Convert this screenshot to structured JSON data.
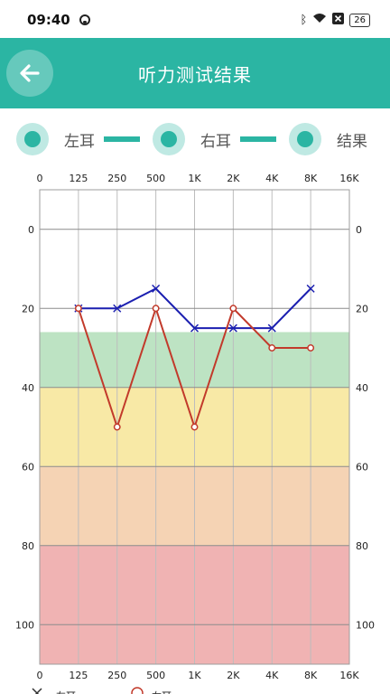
{
  "status_bar": {
    "time": "09:40",
    "battery": "26"
  },
  "header": {
    "title": "听力测试结果"
  },
  "legend_tabs": [
    {
      "label": "左耳"
    },
    {
      "label": "右耳"
    },
    {
      "label": "结果"
    }
  ],
  "colors": {
    "accent": "#2bb5a3",
    "left_ear": "#1b1fb0",
    "right_ear": "#c23a2b",
    "band_green": "#bde3c3",
    "band_yellow": "#f8e9a6",
    "band_orange": "#f5d3b4",
    "band_red": "#f0b3b3"
  },
  "chart_data": {
    "type": "line",
    "categories": [
      "0",
      "125",
      "250",
      "500",
      "1K",
      "2K",
      "4K",
      "8K",
      "16K"
    ],
    "y_ticks": [
      0,
      20,
      40,
      60,
      80,
      100
    ],
    "ylim": [
      -10,
      110
    ],
    "y_inverted": true,
    "bands": [
      {
        "from": 26,
        "to": 40,
        "color": "#bde3c3"
      },
      {
        "from": 40,
        "to": 60,
        "color": "#f8e9a6"
      },
      {
        "from": 60,
        "to": 80,
        "color": "#f5d3b4"
      },
      {
        "from": 80,
        "to": 110,
        "color": "#f0b3b3"
      }
    ],
    "series": [
      {
        "name": "左耳",
        "marker": "x",
        "color": "#1b1fb0",
        "x": [
          "125",
          "250",
          "500",
          "1K",
          "2K",
          "4K",
          "8K"
        ],
        "values": [
          20,
          20,
          15,
          25,
          25,
          25,
          15
        ]
      },
      {
        "name": "右耳",
        "marker": "o",
        "color": "#c23a2b",
        "x": [
          "125",
          "250",
          "500",
          "1K",
          "2K",
          "4K",
          "8K"
        ],
        "values": [
          20,
          50,
          20,
          50,
          20,
          30,
          30
        ]
      }
    ],
    "bottom_legend": [
      {
        "label": "左耳"
      },
      {
        "label": "右耳"
      }
    ]
  }
}
